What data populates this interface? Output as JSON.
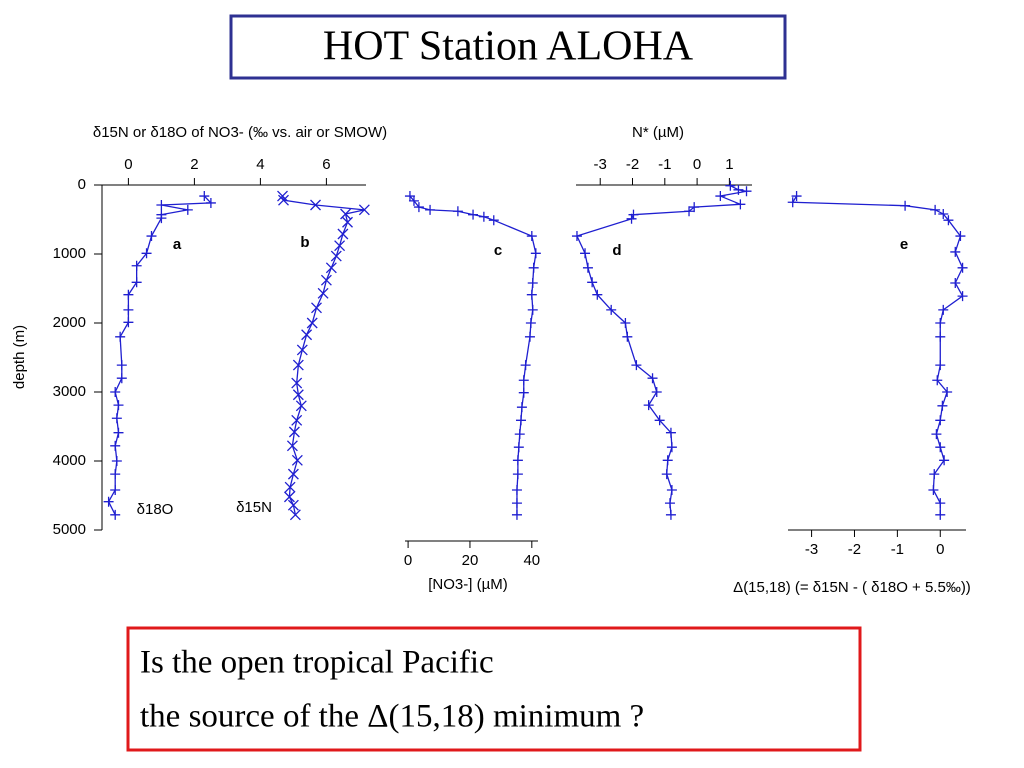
{
  "title": "HOT Station ALOHA",
  "note_lines": [
    "Is the open tropical Pacific",
    "the source of the Δ(15,18) minimum ?"
  ],
  "chart_data": [
    {
      "type": "line",
      "xlabel": "δ15N or δ18O of NO3- (‰ vs. air or SMOW)",
      "ylabel": "depth (m)",
      "xlim": [
        -0.8,
        7.2
      ],
      "xticks": [
        0,
        2,
        4,
        6
      ],
      "ylim": [
        0,
        5000
      ],
      "yticks": [
        0,
        1000,
        2000,
        3000,
        4000,
        5000
      ],
      "panel_labels": [
        "a",
        "b"
      ],
      "series": [
        {
          "name": "δ18O",
          "color": "#1f1fd0",
          "marker": "plus",
          "x": [
            2.3,
            2.5,
            1.0,
            1.8,
            1.0,
            1.0,
            0.7,
            0.55,
            0.25,
            0.25,
            0.0,
            0.0,
            0.0,
            -0.25,
            -0.2,
            -0.2,
            -0.4,
            -0.3,
            -0.35,
            -0.3,
            -0.4,
            -0.35,
            -0.4,
            -0.4,
            -0.6,
            -0.4
          ],
          "y": [
            160,
            260,
            290,
            360,
            430,
            480,
            740,
            990,
            1170,
            1410,
            1590,
            1810,
            1990,
            2200,
            2610,
            2800,
            3000,
            3190,
            3380,
            3590,
            3780,
            4000,
            4190,
            4420,
            4590,
            4780
          ]
        },
        {
          "name": "δ15N",
          "color": "#1f1fd0",
          "marker": "cross",
          "x": [
            4.67,
            4.7,
            5.67,
            7.15,
            6.58,
            6.64,
            6.5,
            6.4,
            6.3,
            6.15,
            6.0,
            5.9,
            5.7,
            5.57,
            5.4,
            5.27,
            5.15,
            5.1,
            5.15,
            5.24,
            5.1,
            5.03,
            4.97,
            5.12,
            5.0,
            4.9,
            4.88,
            5.0,
            5.06
          ],
          "y": [
            160,
            220,
            290,
            360,
            420,
            540,
            710,
            880,
            1030,
            1200,
            1380,
            1570,
            1780,
            2000,
            2170,
            2390,
            2610,
            2870,
            3040,
            3200,
            3410,
            3580,
            3780,
            3990,
            4190,
            4380,
            4520,
            4640,
            4780
          ]
        }
      ]
    },
    {
      "type": "line",
      "xlabel": "[NO3-] (µM)",
      "xlim": [
        -1,
        42
      ],
      "xticks": [
        0,
        20,
        40
      ],
      "ylim": [
        0,
        5000
      ],
      "panel_labels": [
        "c"
      ],
      "series": [
        {
          "color": "#1f1fd0",
          "marker": "plus",
          "x": [
            0.6,
            1.9,
            3.5,
            7.1,
            16.1,
            21,
            24.5,
            27.7,
            40,
            41.3,
            40.6,
            40.3,
            40,
            40.3,
            39.7,
            39.4,
            38,
            37.4,
            37.4,
            36.8,
            36.5,
            36.1,
            35.8,
            35.5,
            35.5,
            35.2,
            35.2,
            35.2
          ],
          "y": [
            160,
            230,
            320,
            360,
            380,
            430,
            460,
            510,
            740,
            990,
            1200,
            1420,
            1590,
            1810,
            2000,
            2200,
            2610,
            2830,
            3010,
            3220,
            3410,
            3610,
            3800,
            3990,
            4190,
            4420,
            4610,
            4780
          ]
        }
      ]
    },
    {
      "type": "line",
      "xlabel": "N*  (µM)",
      "xlim": [
        -3.75,
        1.7
      ],
      "xticks": [
        -3,
        -2,
        -1,
        0,
        1
      ],
      "ylim": [
        0,
        5000
      ],
      "panel_labels": [
        "d"
      ],
      "series": [
        {
          "color": "#1f1fd0",
          "marker": "plus",
          "x": [
            1.03,
            1.28,
            1.53,
            0.72,
            1.34,
            -0.09,
            -0.25,
            -1.97,
            -2.03,
            -3.72,
            -3.47,
            -3.38,
            -3.25,
            -3.09,
            -2.66,
            -2.22,
            -2.16,
            -1.88,
            -1.38,
            -1.25,
            -1.5,
            -1.16,
            -0.81,
            -0.78,
            -0.91,
            -0.94,
            -0.78,
            -0.84,
            -0.81
          ],
          "y": [
            10,
            70,
            90,
            160,
            280,
            320,
            380,
            430,
            490,
            740,
            990,
            1200,
            1410,
            1590,
            1810,
            2000,
            2200,
            2610,
            2800,
            3000,
            3190,
            3410,
            3590,
            3800,
            3990,
            4190,
            4420,
            4610,
            4780
          ]
        }
      ]
    },
    {
      "type": "line",
      "xlabel": "Δ(15,18) (=  δ15N - ( δ18O + 5.5‰))",
      "xlim": [
        -3.55,
        0.6
      ],
      "xticks": [
        -3,
        -2,
        -1,
        0
      ],
      "ylim": [
        0,
        5000
      ],
      "panel_labels": [
        "e"
      ],
      "series": [
        {
          "color": "#1f1fd0",
          "marker": "plus",
          "x": [
            -3.35,
            -3.44,
            -0.82,
            -0.12,
            0.07,
            0.19,
            0.47,
            0.35,
            0.52,
            0.35,
            0.52,
            0.07,
            0.0,
            0.0,
            0.0,
            -0.07,
            0.16,
            0.05,
            0.0,
            -0.09,
            0.0,
            0.09,
            -0.14,
            -0.16,
            0.0,
            0.0
          ],
          "y": [
            160,
            250,
            300,
            360,
            420,
            510,
            740,
            970,
            1200,
            1420,
            1610,
            1810,
            2000,
            2200,
            2610,
            2830,
            3000,
            3200,
            3410,
            3610,
            3800,
            3990,
            4190,
            4420,
            4610,
            4780
          ]
        }
      ]
    }
  ]
}
